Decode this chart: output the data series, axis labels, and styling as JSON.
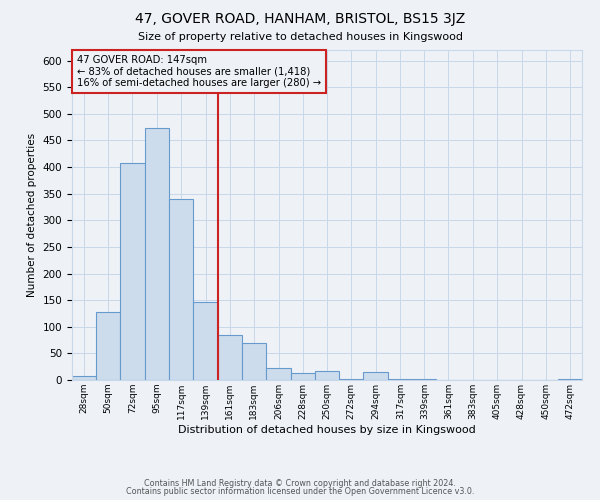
{
  "title": "47, GOVER ROAD, HANHAM, BRISTOL, BS15 3JZ",
  "subtitle": "Size of property relative to detached houses in Kingswood",
  "xlabel": "Distribution of detached houses by size in Kingswood",
  "ylabel": "Number of detached properties",
  "footer_line1": "Contains HM Land Registry data © Crown copyright and database right 2024.",
  "footer_line2": "Contains public sector information licensed under the Open Government Licence v3.0.",
  "bin_labels": [
    "28sqm",
    "50sqm",
    "72sqm",
    "95sqm",
    "117sqm",
    "139sqm",
    "161sqm",
    "183sqm",
    "206sqm",
    "228sqm",
    "250sqm",
    "272sqm",
    "294sqm",
    "317sqm",
    "339sqm",
    "361sqm",
    "383sqm",
    "405sqm",
    "428sqm",
    "450sqm",
    "472sqm"
  ],
  "bar_values": [
    8,
    127,
    407,
    473,
    341,
    147,
    85,
    70,
    22,
    13,
    17,
    1,
    15,
    1,
    1,
    0,
    0,
    0,
    0,
    0,
    2
  ],
  "bar_color": "#cddcec",
  "bar_edge_color": "#6699cc",
  "grid_color": "#c8d8e8",
  "annotation_box_edge": "#cc2222",
  "bin_edges_sqm": [
    17,
    39,
    61,
    83.5,
    106,
    128,
    150,
    172,
    194.5,
    217,
    239,
    261,
    283,
    306,
    328,
    350,
    372,
    394,
    416.5,
    439,
    461,
    483
  ],
  "red_line_x": 150,
  "annotation_title": "47 GOVER ROAD: 147sqm",
  "annotation_line1": "← 83% of detached houses are smaller (1,418)",
  "annotation_line2": "16% of semi-detached houses are larger (280) →",
  "ylim": [
    0,
    620
  ],
  "yticks": [
    0,
    50,
    100,
    150,
    200,
    250,
    300,
    350,
    400,
    450,
    500,
    550,
    600
  ],
  "background_color": "#eef2f7",
  "plot_bg_color": "#eef2f7"
}
